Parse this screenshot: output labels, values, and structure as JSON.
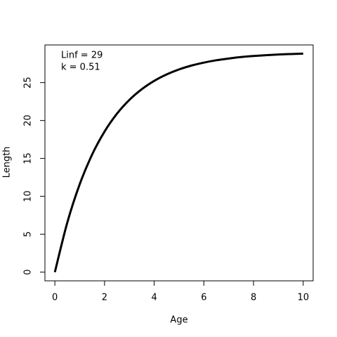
{
  "chart_data": {
    "type": "line",
    "x_label": "Age",
    "y_label": "Length",
    "annotations": [
      "Linf = 29",
      "k = 0.51"
    ],
    "x": [
      0,
      0.5,
      1,
      1.5,
      2,
      2.5,
      3,
      3.5,
      4,
      4.5,
      5,
      5.5,
      6,
      6.5,
      7,
      7.5,
      8,
      8.5,
      9,
      9.5,
      10
    ],
    "series": [
      {
        "color": "#000000",
        "values": [
          0,
          6.53,
          11.59,
          15.51,
          18.54,
          20.9,
          22.72,
          24.13,
          25.23,
          26.08,
          26.74,
          27.25,
          27.64,
          27.95,
          28.18,
          28.37,
          28.51,
          28.62,
          28.71,
          28.77,
          28.82
        ]
      }
    ],
    "xlim": [
      -0.4,
      10.4
    ],
    "ylim": [
      -1.15,
      29.97
    ],
    "xticks": [
      0,
      2,
      4,
      6,
      8,
      10
    ],
    "yticks": [
      0,
      5,
      10,
      15,
      20,
      25
    ],
    "grid": false
  }
}
